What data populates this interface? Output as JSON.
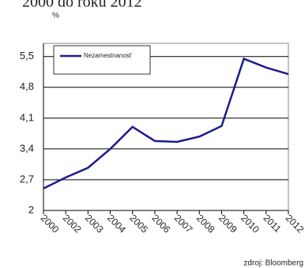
{
  "chart_data": {
    "type": "line",
    "title": "2000 do roku 2012",
    "y_unit": "%",
    "source": "zdroj: Bloomberg",
    "categories": [
      "2000",
      "2002",
      "2003",
      "2004",
      "2005",
      "2006",
      "2007",
      "2008",
      "2009",
      "2010",
      "2011",
      "2012"
    ],
    "series": [
      {
        "name": "Nezamestnanosť",
        "color": "#1c1c8a",
        "values": [
          2.5,
          2.75,
          2.97,
          3.4,
          3.9,
          3.58,
          3.56,
          3.68,
          3.92,
          5.45,
          5.25,
          5.1
        ]
      }
    ],
    "ylim": [
      2,
      5.8
    ],
    "yticks": [
      2,
      {
        "value": 2.7,
        "label": "2,7"
      },
      {
        "value": 3.4,
        "label": "3,4"
      },
      {
        "value": 4.1,
        "label": "4,1"
      },
      {
        "value": 4.8,
        "label": "4,8"
      },
      {
        "value": 5.5,
        "label": "5,5"
      }
    ],
    "grid": true,
    "legend": "top-left"
  }
}
